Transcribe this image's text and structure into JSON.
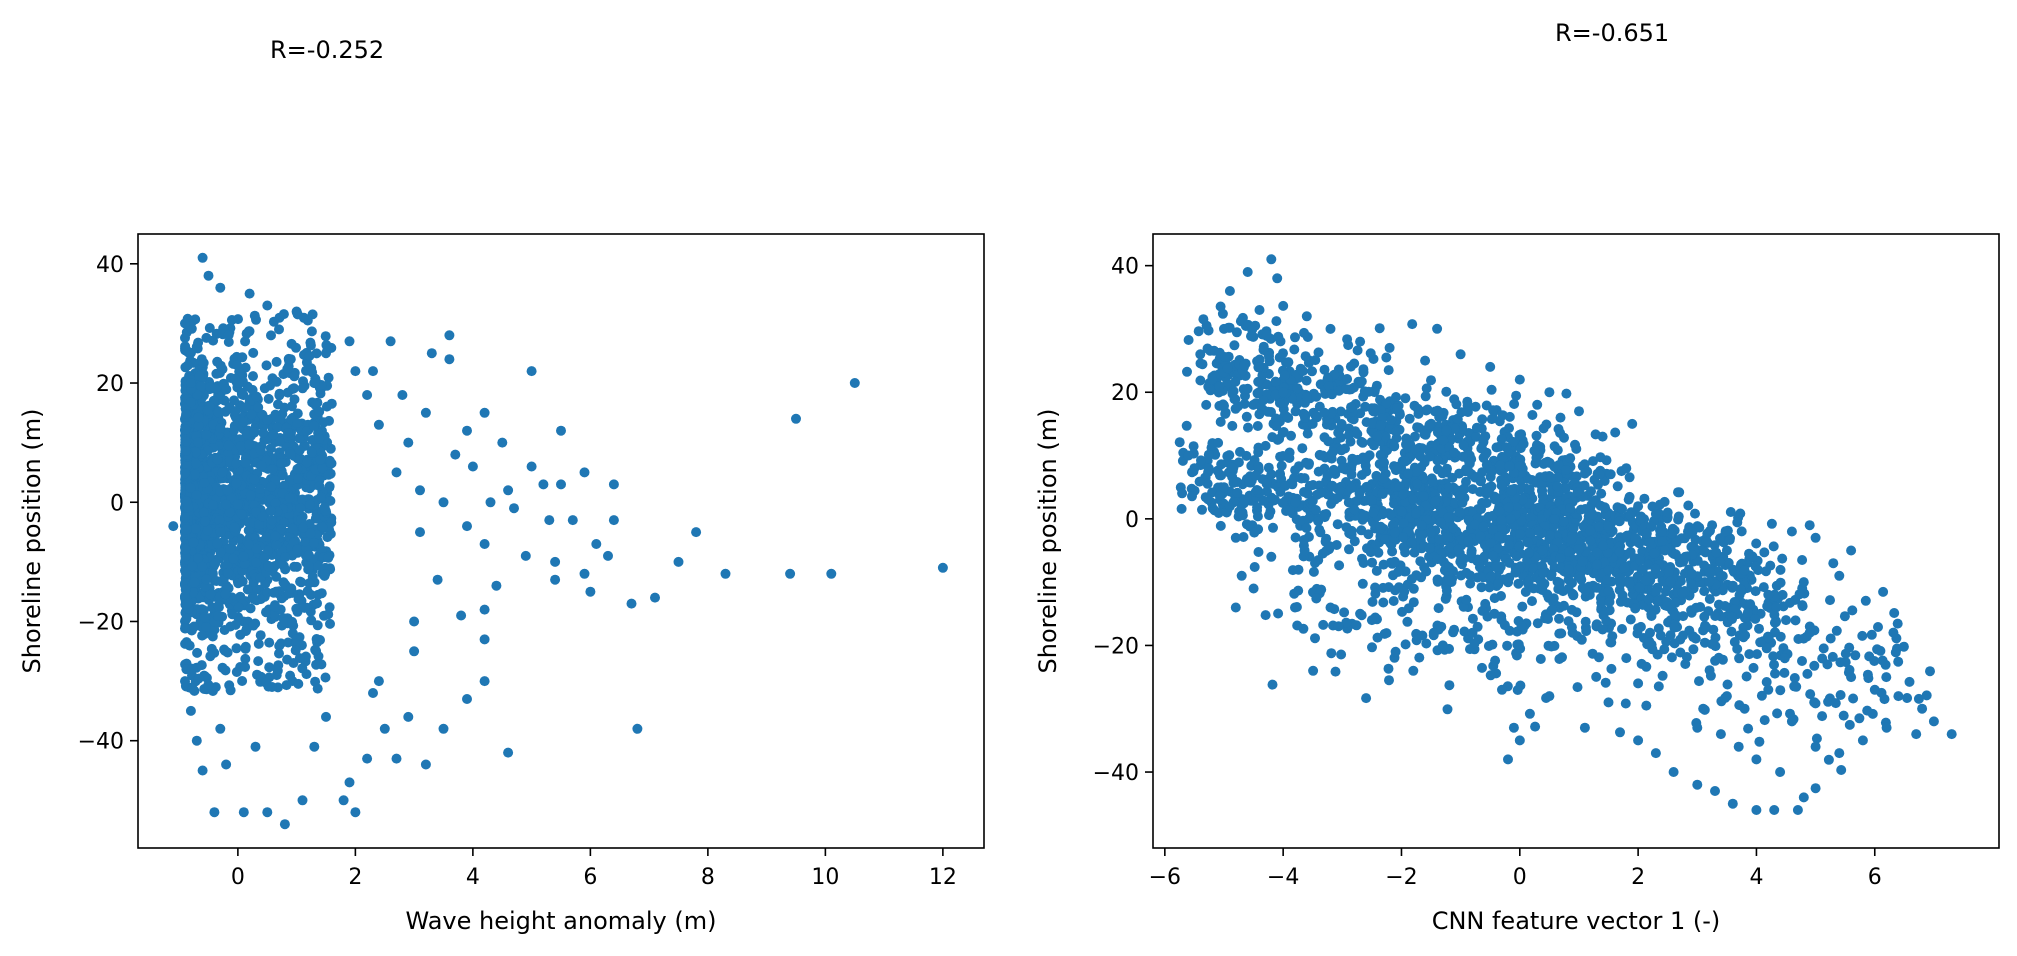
{
  "chart_data": [
    {
      "type": "scatter",
      "annotation": "R=-0.252",
      "xlabel": "Wave height anomaly (m)",
      "ylabel": "Shoreline position (m)",
      "xlim": [
        -1.7,
        12.7
      ],
      "ylim": [
        -58,
        45
      ],
      "xticks": [
        0,
        2,
        4,
        6,
        8,
        10,
        12
      ],
      "yticks": [
        -40,
        -20,
        0,
        20,
        40
      ],
      "xtick_labels": [
        "0",
        "2",
        "4",
        "6",
        "8",
        "10",
        "12"
      ],
      "ytick_labels": [
        "−40",
        "−20",
        "0",
        "20",
        "40"
      ],
      "grid": false,
      "color": "#1f77b4",
      "points": [
        [
          -0.6,
          41
        ],
        [
          -0.5,
          38
        ],
        [
          -0.3,
          36
        ],
        [
          0.2,
          35
        ],
        [
          0.5,
          33
        ],
        [
          1.0,
          32
        ],
        [
          1.9,
          27
        ],
        [
          2.6,
          27
        ],
        [
          3.6,
          28
        ],
        [
          3.3,
          25
        ],
        [
          3.6,
          24
        ],
        [
          2.0,
          22
        ],
        [
          2.3,
          22
        ],
        [
          2.8,
          18
        ],
        [
          3.2,
          15
        ],
        [
          4.2,
          15
        ],
        [
          5.0,
          22
        ],
        [
          5.5,
          12
        ],
        [
          4.5,
          10
        ],
        [
          3.9,
          12
        ],
        [
          3.7,
          8
        ],
        [
          4.0,
          6
        ],
        [
          4.6,
          2
        ],
        [
          5.0,
          6
        ],
        [
          5.2,
          3
        ],
        [
          5.5,
          3
        ],
        [
          5.9,
          5
        ],
        [
          6.4,
          3
        ],
        [
          4.3,
          0
        ],
        [
          4.7,
          -1
        ],
        [
          5.3,
          -3
        ],
        [
          5.7,
          -3
        ],
        [
          6.1,
          -7
        ],
        [
          6.4,
          -3
        ],
        [
          6.3,
          -9
        ],
        [
          5.4,
          -10
        ],
        [
          5.4,
          -13
        ],
        [
          5.9,
          -12
        ],
        [
          6.0,
          -15
        ],
        [
          4.4,
          -14
        ],
        [
          4.2,
          -18
        ],
        [
          4.9,
          -9
        ],
        [
          3.8,
          -19
        ],
        [
          4.2,
          -23
        ],
        [
          3.9,
          -33
        ],
        [
          4.2,
          -30
        ],
        [
          3.0,
          -25
        ],
        [
          3.5,
          -38
        ],
        [
          2.7,
          -43
        ],
        [
          2.2,
          -43
        ],
        [
          1.9,
          -47
        ],
        [
          1.8,
          -50
        ],
        [
          2.0,
          -52
        ],
        [
          1.1,
          -50
        ],
        [
          0.8,
          -54
        ],
        [
          0.5,
          -52
        ],
        [
          0.1,
          -52
        ],
        [
          -0.4,
          -52
        ],
        [
          -0.6,
          -45
        ],
        [
          -0.2,
          -44
        ],
        [
          4.6,
          -42
        ],
        [
          6.8,
          -38
        ],
        [
          6.7,
          -17
        ],
        [
          7.1,
          -16
        ],
        [
          7.5,
          -10
        ],
        [
          7.8,
          -5
        ],
        [
          8.3,
          -12
        ],
        [
          9.4,
          -12
        ],
        [
          9.5,
          14
        ],
        [
          10.1,
          -12
        ],
        [
          10.5,
          20
        ],
        [
          12.0,
          -11
        ],
        [
          2.4,
          -30
        ],
        [
          2.9,
          -36
        ],
        [
          3.2,
          -44
        ],
        [
          1.5,
          -36
        ],
        [
          1.3,
          -41
        ],
        [
          2.5,
          -38
        ],
        [
          2.3,
          -32
        ],
        [
          3.0,
          -20
        ],
        [
          3.4,
          -13
        ],
        [
          3.1,
          -5
        ],
        [
          3.5,
          0
        ],
        [
          3.9,
          -4
        ],
        [
          4.2,
          -7
        ],
        [
          2.7,
          5
        ],
        [
          2.9,
          10
        ],
        [
          3.1,
          2
        ],
        [
          2.4,
          13
        ],
        [
          2.2,
          18
        ],
        [
          1.5,
          25
        ],
        [
          1.3,
          20
        ],
        [
          0.7,
          29
        ],
        [
          0.9,
          24
        ],
        [
          -1.1,
          -4
        ],
        [
          -0.9,
          -30
        ],
        [
          -0.9,
          30
        ],
        [
          -0.8,
          20
        ],
        [
          -0.8,
          -35
        ],
        [
          -0.7,
          -40
        ],
        [
          -0.3,
          -38
        ],
        [
          0.3,
          -41
        ]
      ],
      "dense_cloud": {
        "x_range": [
          -0.9,
          1.6
        ],
        "y_range": [
          -32,
          32
        ],
        "count": 1900
      }
    },
    {
      "type": "scatter",
      "annotation": "R=-0.651",
      "xlabel": "CNN feature vector 1 (-)",
      "ylabel": "Shoreline position (m)",
      "xlim": [
        -6.2,
        8.1
      ],
      "ylim": [
        -52,
        45
      ],
      "xticks": [
        -6,
        -4,
        -2,
        0,
        2,
        4,
        6
      ],
      "yticks": [
        -40,
        -20,
        0,
        20,
        40
      ],
      "xtick_labels": [
        "−6",
        "−4",
        "−2",
        "0",
        "2",
        "4",
        "6"
      ],
      "ytick_labels": [
        "−40",
        "−20",
        "0",
        "20",
        "40"
      ],
      "grid": false,
      "color": "#1f77b4",
      "points": [
        [
          -4.2,
          41
        ],
        [
          -4.6,
          39
        ],
        [
          -4.1,
          38
        ],
        [
          -4.9,
          36
        ],
        [
          -5.2,
          22
        ],
        [
          -5.3,
          18
        ],
        [
          -5.6,
          10
        ],
        [
          -5.5,
          8
        ],
        [
          -5.0,
          5
        ],
        [
          -4.9,
          2
        ],
        [
          -4.8,
          -3
        ],
        [
          -4.7,
          -9
        ],
        [
          -4.8,
          -14
        ],
        [
          -4.5,
          -11
        ],
        [
          -4.2,
          -6
        ],
        [
          -3.8,
          -14
        ],
        [
          -3.2,
          -14
        ],
        [
          -2.7,
          -15
        ],
        [
          -2.5,
          -16
        ],
        [
          -2.1,
          -21
        ],
        [
          -1.8,
          -24
        ],
        [
          -1.3,
          -20
        ],
        [
          -0.8,
          -18
        ],
        [
          -0.3,
          -27
        ],
        [
          -0.1,
          -33
        ],
        [
          0.0,
          -35
        ],
        [
          -0.2,
          -38
        ],
        [
          0.5,
          -28
        ],
        [
          1.1,
          -33
        ],
        [
          1.5,
          -29
        ],
        [
          1.8,
          -22
        ],
        [
          2.0,
          -26
        ],
        [
          2.0,
          -35
        ],
        [
          2.3,
          -37
        ],
        [
          2.6,
          -40
        ],
        [
          3.0,
          -42
        ],
        [
          3.3,
          -43
        ],
        [
          3.6,
          -45
        ],
        [
          4.0,
          -46
        ],
        [
          4.3,
          -46
        ],
        [
          4.7,
          -46
        ],
        [
          4.8,
          -44
        ],
        [
          4.4,
          -40
        ],
        [
          4.0,
          -38
        ],
        [
          3.7,
          -36
        ],
        [
          3.4,
          -34
        ],
        [
          3.0,
          -33
        ],
        [
          3.1,
          -30
        ],
        [
          3.5,
          -28
        ],
        [
          3.8,
          -30
        ],
        [
          4.2,
          -27
        ],
        [
          4.6,
          -32
        ],
        [
          5.0,
          -36
        ],
        [
          5.4,
          -37
        ],
        [
          5.8,
          -35
        ],
        [
          6.2,
          -33
        ],
        [
          6.7,
          -34
        ],
        [
          7.0,
          -32
        ],
        [
          7.3,
          -34
        ],
        [
          6.8,
          -30
        ],
        [
          6.4,
          -28
        ],
        [
          6.0,
          -27
        ],
        [
          5.6,
          -25
        ],
        [
          5.2,
          -23
        ],
        [
          4.9,
          -18
        ],
        [
          4.5,
          -16
        ],
        [
          4.2,
          -12
        ],
        [
          4.8,
          -10
        ],
        [
          5.3,
          -7
        ],
        [
          5.6,
          -5
        ],
        [
          5.0,
          -3
        ],
        [
          4.6,
          -2
        ],
        [
          4.9,
          -1
        ],
        [
          5.4,
          -9
        ],
        [
          3.2,
          -10
        ],
        [
          2.8,
          -6
        ],
        [
          2.4,
          -2
        ],
        [
          2.0,
          2
        ],
        [
          1.8,
          8
        ],
        [
          1.4,
          13
        ],
        [
          1.0,
          17
        ],
        [
          0.5,
          20
        ],
        [
          0.0,
          22
        ],
        [
          -0.5,
          24
        ],
        [
          -1.0,
          26
        ],
        [
          -1.6,
          25
        ],
        [
          -2.2,
          27
        ],
        [
          -2.7,
          28
        ],
        [
          -3.2,
          30
        ],
        [
          -3.6,
          32
        ],
        [
          -4.4,
          33
        ],
        [
          -5.0,
          30
        ],
        [
          -5.4,
          26
        ],
        [
          -5.1,
          12
        ],
        [
          -4.0,
          20
        ],
        [
          -3.5,
          15
        ],
        [
          -3.0,
          8
        ],
        [
          -2.5,
          3
        ],
        [
          1.9,
          15
        ],
        [
          2.5,
          1
        ],
        [
          3.5,
          -5
        ],
        [
          2.2,
          -18
        ]
      ],
      "bands": [
        {
          "x0": -5.3,
          "y0": 25,
          "x1": 1.5,
          "y1": 2,
          "count": 750,
          "spread": 5
        },
        {
          "x0": -5.4,
          "y0": 6,
          "x1": 3.5,
          "y1": -6,
          "count": 900,
          "spread": 4
        },
        {
          "x0": -2.5,
          "y0": 0,
          "x1": 4.5,
          "y1": -14,
          "count": 700,
          "spread": 5
        },
        {
          "x0": -4.0,
          "y0": -12,
          "x1": 6.5,
          "y1": -24,
          "count": 350,
          "spread": 6
        }
      ]
    }
  ]
}
